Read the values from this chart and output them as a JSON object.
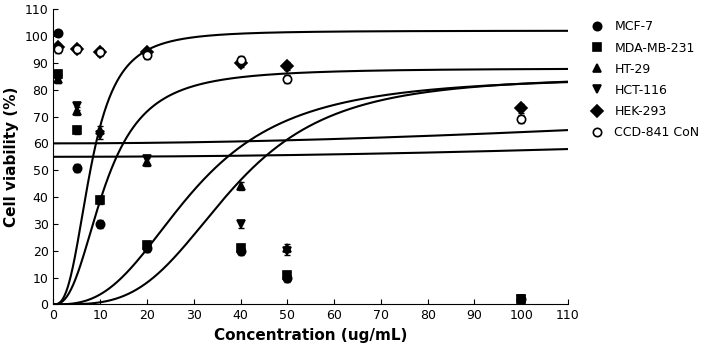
{
  "series": [
    {
      "label": "MCF-7",
      "marker": "o",
      "fillstyle": "full",
      "x": [
        1,
        5,
        10,
        20,
        40,
        50,
        100
      ],
      "y": [
        101,
        51,
        30,
        21,
        20,
        10,
        2
      ],
      "yerr": [
        1.0,
        1.5,
        1.5,
        1.5,
        1.5,
        1.5,
        1.0
      ],
      "curve": {
        "bottom": 0,
        "top": 102,
        "ec50": 8,
        "hill": 2.8
      }
    },
    {
      "label": "MDA-MB-231",
      "marker": "s",
      "fillstyle": "full",
      "x": [
        1,
        5,
        10,
        20,
        40,
        50,
        100
      ],
      "y": [
        86,
        65,
        39,
        22,
        21,
        11,
        2
      ],
      "yerr": [
        1.5,
        1.5,
        1.5,
        1.5,
        1.5,
        1.5,
        1.0
      ],
      "curve": {
        "bottom": 0,
        "top": 88,
        "ec50": 11,
        "hill": 2.5
      }
    },
    {
      "label": "HT-29",
      "marker": "^",
      "fillstyle": "full",
      "x": [
        1,
        5,
        10,
        20,
        40,
        50,
        100
      ],
      "y": [
        84,
        72,
        65,
        53,
        44,
        21,
        2
      ],
      "yerr": [
        1.5,
        1.5,
        1.5,
        1.5,
        1.5,
        1.5,
        1.0
      ],
      "curve": {
        "bottom": 0,
        "top": 85,
        "ec50": 38,
        "hill": 3.5
      }
    },
    {
      "label": "HCT-116",
      "marker": "v",
      "fillstyle": "full",
      "x": [
        1,
        5,
        10,
        20,
        40,
        50,
        100
      ],
      "y": [
        84,
        74,
        63,
        54,
        30,
        20,
        2
      ],
      "yerr": [
        1.5,
        1.5,
        1.5,
        1.5,
        1.5,
        1.5,
        1.0
      ],
      "curve": {
        "bottom": 0,
        "top": 85,
        "ec50": 30,
        "hill": 2.8
      }
    },
    {
      "label": "HEK-293",
      "marker": "D",
      "fillstyle": "full",
      "x": [
        1,
        5,
        10,
        20,
        40,
        50,
        100
      ],
      "y": [
        96,
        95,
        94,
        94,
        90,
        89,
        73
      ],
      "yerr": [
        1.0,
        1.0,
        1.0,
        1.0,
        1.5,
        1.5,
        1.5
      ],
      "curve": {
        "bottom": 60,
        "top": 97,
        "ec50": 280,
        "hill": 2.0
      }
    },
    {
      "label": "CCD-841 CoN",
      "marker": "o",
      "fillstyle": "none",
      "x": [
        1,
        5,
        10,
        20,
        40,
        50,
        100
      ],
      "y": [
        95,
        95,
        94,
        93,
        91,
        84,
        69
      ],
      "yerr": [
        1.5,
        1.5,
        1.5,
        1.5,
        1.5,
        1.5,
        1.5
      ],
      "curve": {
        "bottom": 55,
        "top": 96,
        "ec50": 400,
        "hill": 2.0
      }
    }
  ],
  "xlabel": "Concentration (ug/mL)",
  "ylabel": "Cell viability (%)",
  "xlim": [
    0,
    110
  ],
  "ylim": [
    0,
    110
  ],
  "xticks": [
    0,
    10,
    20,
    30,
    40,
    50,
    60,
    70,
    80,
    90,
    100,
    110
  ],
  "yticks": [
    0,
    10,
    20,
    30,
    40,
    50,
    60,
    70,
    80,
    90,
    100,
    110
  ],
  "line_color": "#000000",
  "marker_color": "#000000",
  "background_color": "#ffffff",
  "legend_fontsize": 9,
  "axis_fontsize": 11,
  "tick_fontsize": 9,
  "markersize": 6,
  "linewidth": 1.5
}
